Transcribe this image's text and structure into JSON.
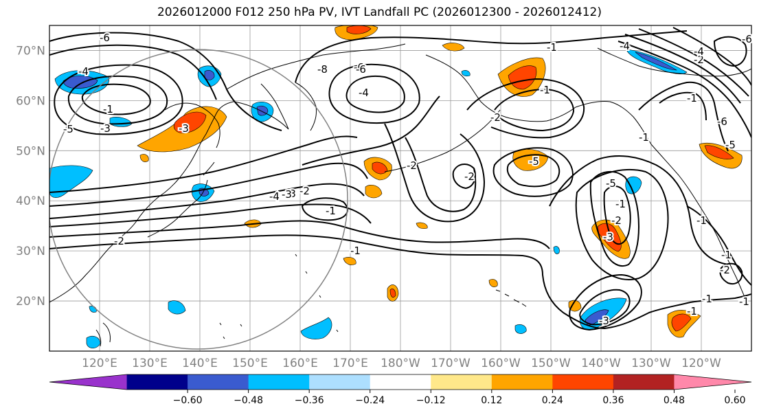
{
  "title": "2026012000 F012 250 hPa PV, IVT Landfall PC (2026012300 - 2026012412)",
  "map": {
    "projection": "cylindrical",
    "lon_range": [
      110,
      250
    ],
    "lat_range": [
      10,
      75
    ],
    "gridlines": true
  },
  "lat_ticks": [
    "20°N",
    "30°N",
    "40°N",
    "50°N",
    "60°N",
    "70°N"
  ],
  "lon_ticks": [
    "120°E",
    "130°E",
    "140°E",
    "150°E",
    "160°E",
    "170°E",
    "180°W",
    "170°W",
    "160°W",
    "150°W",
    "140°W",
    "130°W",
    "120°W"
  ],
  "contour_labels": [
    "-6",
    "-4",
    "-1",
    "-3",
    "-5",
    "-3",
    "-2",
    "-6",
    "-8",
    "-6",
    "-4",
    "-2",
    "-1",
    "-1",
    "-2",
    "-4",
    "-3",
    "-2",
    "-1",
    "-2",
    "-1",
    "-1",
    "-6",
    "-1",
    "-2",
    "-5",
    "-3",
    "-6",
    "-4",
    "-1",
    "-2",
    "-1",
    "-1",
    "-2",
    "-5",
    "-5",
    "-4",
    "-1",
    "-3",
    "-3",
    "-1",
    "-1"
  ],
  "colorbar": {
    "ticks": [
      "−0.60",
      "−0.48",
      "−0.36",
      "−0.24",
      "−0.12",
      "0.12",
      "0.24",
      "0.36",
      "0.48",
      "0.60"
    ],
    "colors": [
      "#9932CC",
      "#00008B",
      "#3A5BCF",
      "#00BFFF",
      "#ADDFFF",
      "#FFFFFF",
      "#FFE88A",
      "#FFA500",
      "#FF4500",
      "#B22222",
      "#FF88AA"
    ],
    "extend": "both"
  },
  "colors": {
    "coast": "#000000",
    "grid": "#999999",
    "contour": "#000000",
    "circle": "#808080"
  }
}
